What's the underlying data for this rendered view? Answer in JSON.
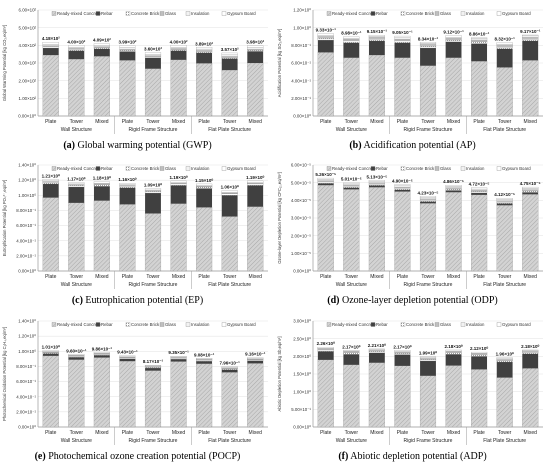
{
  "legend_labels": [
    "Ready-mixed Concrete",
    "Rebar",
    "Concrete Brick",
    "Glass",
    "Insulation",
    "Gypsum Board"
  ],
  "categories": [
    "Plate",
    "Tower",
    "Mixed",
    "Plate",
    "Tower",
    "Mixed",
    "Plate",
    "Tower",
    "Mixed"
  ],
  "groups": [
    "Wall Structure",
    "Rigid Frame Structure",
    "Flat Plate Structure"
  ],
  "colors": {
    "concrete": "#d3d3d3",
    "rebar": "#404040",
    "brick": "#ffffff",
    "glass": "#bfbfbf",
    "insulation": "#f2f2f2",
    "gypsum": "#ffffff",
    "axis": "#999999",
    "grid": "#e6e6e6"
  },
  "chart_data": [
    {
      "id": "a",
      "type": "bar",
      "stacked": true,
      "caption_letter": "(a)",
      "caption_text": " Global warming potential (GWP)",
      "ylabel": "Global Warming Potential [kg CO₂,eq/m²]",
      "ylim": [
        0,
        600
      ],
      "yticks": [
        "0.00×10⁰",
        "1.00×10²",
        "2.00×10²",
        "3.00×10²",
        "4.00×10²",
        "5.00×10²",
        "6.00×10²"
      ],
      "totals": [
        418,
        400,
        409,
        399,
        360,
        400,
        389,
        357,
        398
      ],
      "total_labels": [
        "4.18×10²",
        "4.00×10²",
        "4.09×10²",
        "3.99×10²",
        "3.60×10²",
        "4.00×10²",
        "3.89×10²",
        "3.57×10²",
        "3.98×10²"
      ],
      "series": [
        {
          "name": "Ready-mixed Concrete",
          "values": [
            345,
            322,
            338,
            315,
            268,
            318,
            298,
            260,
            300
          ]
        },
        {
          "name": "Rebar",
          "values": [
            40,
            48,
            42,
            50,
            62,
            52,
            60,
            65,
            66
          ]
        },
        {
          "name": "Concrete Brick",
          "values": [
            7,
            7,
            6,
            7,
            5,
            6,
            7,
            6,
            6
          ]
        },
        {
          "name": "Glass",
          "values": [
            6,
            6,
            6,
            6,
            6,
            6,
            6,
            6,
            6
          ]
        },
        {
          "name": "Insulation",
          "values": [
            8,
            7,
            7,
            9,
            8,
            7,
            8,
            9,
            9
          ]
        },
        {
          "name": "Gypsum Board",
          "values": [
            12,
            10,
            10,
            12,
            11,
            11,
            10,
            11,
            11
          ]
        }
      ]
    },
    {
      "id": "b",
      "type": "bar",
      "stacked": true,
      "caption_letter": "(b)",
      "caption_text": " Acidification potential (AP)",
      "ylabel": "Acidification Potential [kg SO₂,eq/m²]",
      "ylim": [
        0,
        1.2
      ],
      "yticks": [
        "0.00×10⁰",
        "2.00×10⁻¹",
        "4.00×10⁻¹",
        "6.00×10⁻¹",
        "8.00×10⁻¹",
        "1.00×10⁰",
        "1.20×10⁰"
      ],
      "totals": [
        0.933,
        0.898,
        0.915,
        0.905,
        0.834,
        0.912,
        0.886,
        0.832,
        0.917
      ],
      "total_labels": [
        "9.33×10⁻¹",
        "8.98×10⁻¹",
        "9.15×10⁻¹",
        "9.05×10⁻¹",
        "8.34×10⁻¹",
        "9.12×10⁻¹",
        "8.86×10⁻¹",
        "8.32×10⁻¹",
        "9.17×10⁻¹"
      ],
      "series": [
        {
          "name": "Ready-mixed Concrete",
          "values": [
            0.72,
            0.66,
            0.69,
            0.66,
            0.57,
            0.66,
            0.62,
            0.55,
            0.63
          ]
        },
        {
          "name": "Rebar",
          "values": [
            0.14,
            0.17,
            0.16,
            0.17,
            0.2,
            0.18,
            0.2,
            0.21,
            0.22
          ]
        },
        {
          "name": "Concrete Brick",
          "values": [
            0.02,
            0.02,
            0.02,
            0.02,
            0.02,
            0.02,
            0.02,
            0.02,
            0.02
          ]
        },
        {
          "name": "Glass",
          "values": [
            0.02,
            0.02,
            0.02,
            0.02,
            0.02,
            0.02,
            0.02,
            0.02,
            0.02
          ]
        },
        {
          "name": "Insulation",
          "values": [
            0.013,
            0.012,
            0.011,
            0.015,
            0.014,
            0.012,
            0.016,
            0.014,
            0.017
          ]
        },
        {
          "name": "Gypsum Board",
          "values": [
            0.02,
            0.016,
            0.014,
            0.02,
            0.01,
            0.02,
            0.01,
            0.018,
            0.01
          ]
        }
      ]
    },
    {
      "id": "c",
      "type": "bar",
      "stacked": true,
      "caption_letter": "(c)",
      "caption_text": " Eutrophication potential (EP)",
      "ylabel": "Eutrophication Potential [kg PO₄³⁻,eq/m²]",
      "ylim": [
        0,
        1.4
      ],
      "yticks": [
        "0.00×10⁰",
        "2.00×10⁻¹",
        "4.00×10⁻¹",
        "6.00×10⁻¹",
        "8.00×10⁻¹",
        "1.00×10⁰",
        "1.20×10⁰",
        "1.40×10⁰"
      ],
      "totals": [
        1.21,
        1.17,
        1.18,
        1.16,
        1.09,
        1.19,
        1.15,
        1.06,
        1.19
      ],
      "total_labels": [
        "1.21×10⁰",
        "1.17×10⁰",
        "1.18×10⁰",
        "1.16×10⁰",
        "1.09×10⁰",
        "1.19×10⁰",
        "1.15×10⁰",
        "1.06×10⁰",
        "1.19×10⁰"
      ],
      "series": [
        {
          "name": "Ready-mixed Concrete",
          "values": [
            0.97,
            0.9,
            0.93,
            0.88,
            0.76,
            0.89,
            0.84,
            0.72,
            0.85
          ]
        },
        {
          "name": "Rebar",
          "values": [
            0.18,
            0.21,
            0.19,
            0.22,
            0.27,
            0.24,
            0.25,
            0.28,
            0.28
          ]
        },
        {
          "name": "Concrete Brick",
          "values": [
            0.02,
            0.02,
            0.02,
            0.02,
            0.02,
            0.02,
            0.02,
            0.02,
            0.02
          ]
        },
        {
          "name": "Glass",
          "values": [
            0.01,
            0.01,
            0.01,
            0.01,
            0.01,
            0.01,
            0.01,
            0.01,
            0.01
          ]
        },
        {
          "name": "Insulation",
          "values": [
            0.01,
            0.01,
            0.01,
            0.01,
            0.01,
            0.01,
            0.01,
            0.01,
            0.01
          ]
        },
        {
          "name": "Gypsum Board",
          "values": [
            0.02,
            0.02,
            0.02,
            0.02,
            0.02,
            0.02,
            0.02,
            0.02,
            0.02
          ]
        }
      ]
    },
    {
      "id": "d",
      "type": "bar",
      "stacked": true,
      "caption_letter": "(d)",
      "caption_text": " Ozone-layer depletion potential (ODP)",
      "ylabel": "Ozone-layer Depletion Potential [kg CFC₁₁,eq/m²]",
      "ylim": [
        0,
        6e-05
      ],
      "yticks": [
        "0.00×10⁰",
        "1.00×10⁻⁵",
        "2.00×10⁻⁵",
        "3.00×10⁻⁵",
        "4.00×10⁻⁵",
        "5.00×10⁻⁵",
        "6.00×10⁻⁵"
      ],
      "totals": [
        5.26e-05,
        5.01e-05,
        5.13e-05,
        4.9e-05,
        4.23e-05,
        4.86e-05,
        4.72e-05,
        4.12e-05,
        4.75e-05
      ],
      "total_labels": [
        "5.26×10⁻⁵",
        "5.01×10⁻⁵",
        "5.13×10⁻⁵",
        "4.90×10⁻⁵",
        "4.23×10⁻⁵",
        "4.86×10⁻⁵",
        "4.72×10⁻⁵",
        "4.12×10⁻⁵",
        "4.75×10⁻⁵"
      ],
      "series": [
        {
          "name": "Ready-mixed Concrete",
          "values": [
            4.86e-05,
            4.62e-05,
            4.74e-05,
            4.5e-05,
            3.83e-05,
            4.46e-05,
            4.31e-05,
            3.72e-05,
            4.34e-05
          ]
        },
        {
          "name": "Rebar",
          "values": [
            1e-06,
            1e-06,
            1e-06,
            1e-06,
            1e-06,
            1e-06,
            1.1e-06,
            1e-06,
            1.1e-06
          ]
        },
        {
          "name": "Concrete Brick",
          "values": [
            8e-07,
            8e-07,
            8e-07,
            8e-07,
            8e-07,
            8e-07,
            8e-07,
            8e-07,
            8e-07
          ]
        },
        {
          "name": "Glass",
          "values": [
            7e-07,
            7e-07,
            7e-07,
            7e-07,
            7e-07,
            7e-07,
            7e-07,
            7e-07,
            7e-07
          ]
        },
        {
          "name": "Insulation",
          "values": [
            7e-07,
            6e-07,
            6e-07,
            7e-07,
            7e-07,
            7e-07,
            7e-07,
            7e-07,
            7e-07
          ]
        },
        {
          "name": "Gypsum Board",
          "values": [
            8e-07,
            8e-07,
            8e-07,
            8e-07,
            8e-07,
            8e-07,
            8e-07,
            8e-07,
            8e-07
          ]
        }
      ]
    },
    {
      "id": "e",
      "type": "bar",
      "stacked": true,
      "caption_letter": "(e)",
      "caption_text": " Photochemical ozone creation potential (POCP)",
      "ylabel": "Photochemical Oxidation Potential [kg C₂H₄,eq/m²]",
      "ylim": [
        0,
        1.4
      ],
      "yticks": [
        "0.00×10⁰",
        "2.00×10⁻¹",
        "4.00×10⁻¹",
        "6.00×10⁻¹",
        "8.00×10⁻¹",
        "1.00×10⁰",
        "1.20×10⁰",
        "1.40×10⁰"
      ],
      "totals": [
        1.01,
        0.96,
        0.986,
        0.943,
        0.817,
        0.935,
        0.908,
        0.796,
        0.916
      ],
      "total_labels": [
        "1.01×10⁰",
        "9.60×10⁻¹",
        "9.86×10⁻¹",
        "9.43×10⁻¹",
        "8.17×10⁻¹",
        "9.35×10⁻¹",
        "9.08×10⁻¹",
        "7.96×10⁻¹",
        "9.16×10⁻¹"
      ],
      "series": [
        {
          "name": "Ready-mixed Concrete",
          "values": [
            0.94,
            0.89,
            0.918,
            0.87,
            0.745,
            0.865,
            0.836,
            0.722,
            0.84
          ]
        },
        {
          "name": "Rebar",
          "values": [
            0.03,
            0.032,
            0.03,
            0.033,
            0.034,
            0.032,
            0.034,
            0.035,
            0.037
          ]
        },
        {
          "name": "Concrete Brick",
          "values": [
            0.01,
            0.01,
            0.01,
            0.01,
            0.01,
            0.01,
            0.01,
            0.01,
            0.01
          ]
        },
        {
          "name": "Glass",
          "values": [
            0.01,
            0.01,
            0.01,
            0.01,
            0.01,
            0.01,
            0.01,
            0.01,
            0.01
          ]
        },
        {
          "name": "Insulation",
          "values": [
            0.01,
            0.008,
            0.008,
            0.01,
            0.008,
            0.008,
            0.008,
            0.009,
            0.009
          ]
        },
        {
          "name": "Gypsum Board",
          "values": [
            0.01,
            0.01,
            0.01,
            0.01,
            0.01,
            0.01,
            0.01,
            0.01,
            0.01
          ]
        }
      ]
    },
    {
      "id": "f",
      "type": "bar",
      "stacked": true,
      "caption_letter": "(f)",
      "caption_text": " Abiotic depletion potential (ADP)",
      "ylabel": "Abiotic Depletion Potential [kg Sb,eq/m²]",
      "ylim": [
        0,
        3
      ],
      "yticks": [
        "0.00×10⁰",
        "5.00×10⁻¹",
        "1.00×10⁰",
        "1.50×10⁰",
        "2.00×10⁰",
        "2.50×10⁰",
        "3.00×10⁰"
      ],
      "totals": [
        2.26,
        2.17,
        2.21,
        2.17,
        1.99,
        2.18,
        2.12,
        1.96,
        2.18
      ],
      "total_labels": [
        "2.26×10⁰",
        "2.17×10⁰",
        "2.21×10⁰",
        "2.17×10⁰",
        "1.99×10⁰",
        "2.18×10⁰",
        "2.12×10⁰",
        "1.96×10⁰",
        "2.18×10⁰"
      ],
      "series": [
        {
          "name": "Ready-mixed Concrete",
          "values": [
            1.9,
            1.76,
            1.82,
            1.73,
            1.45,
            1.74,
            1.63,
            1.4,
            1.66
          ]
        },
        {
          "name": "Rebar",
          "values": [
            0.24,
            0.3,
            0.28,
            0.32,
            0.42,
            0.32,
            0.37,
            0.44,
            0.41
          ]
        },
        {
          "name": "Concrete Brick",
          "values": [
            0.04,
            0.04,
            0.04,
            0.04,
            0.04,
            0.04,
            0.04,
            0.04,
            0.04
          ]
        },
        {
          "name": "Glass",
          "values": [
            0.03,
            0.03,
            0.03,
            0.03,
            0.03,
            0.03,
            0.03,
            0.03,
            0.03
          ]
        },
        {
          "name": "Insulation",
          "values": [
            0.02,
            0.02,
            0.02,
            0.02,
            0.02,
            0.02,
            0.02,
            0.02,
            0.02
          ]
        },
        {
          "name": "Gypsum Board",
          "values": [
            0.03,
            0.02,
            0.02,
            0.03,
            0.03,
            0.03,
            0.03,
            0.03,
            0.02
          ]
        }
      ]
    }
  ]
}
